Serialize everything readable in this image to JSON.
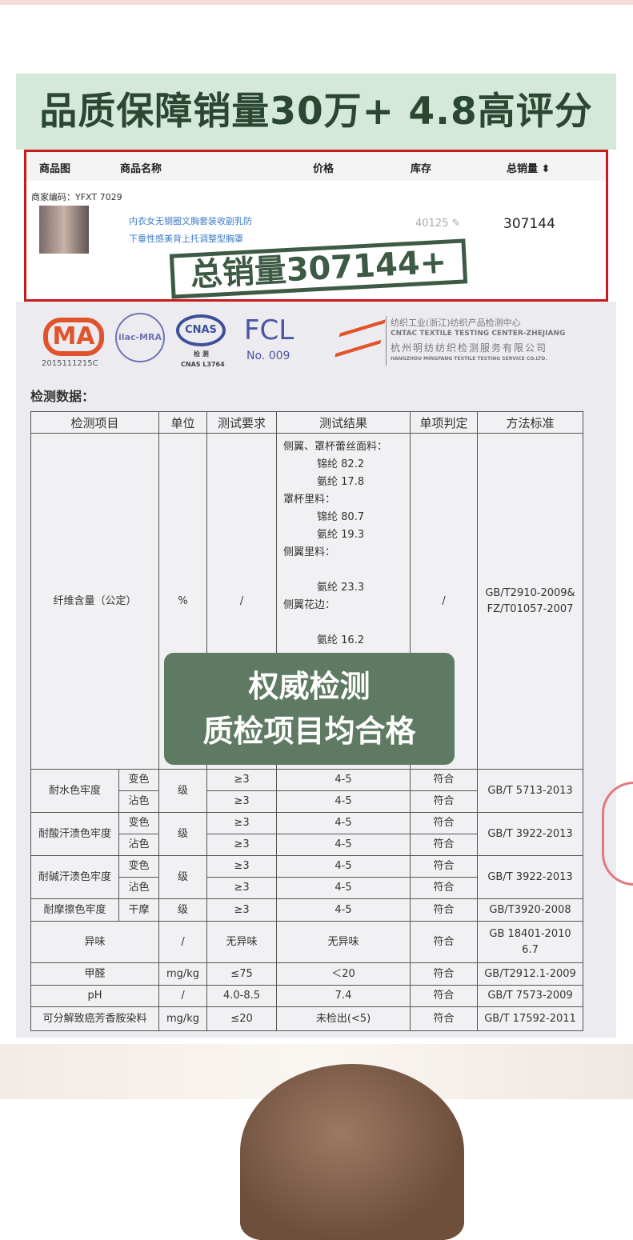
{
  "banner": {
    "title": "品质保障销量30万+ 4.8高评分"
  },
  "listing": {
    "headers": [
      "商品图",
      "商品名称",
      "价格",
      "库存",
      "总销量 ⬍"
    ],
    "merchant_code": "商家编码：YFXT 7029",
    "product_name_1": "内衣女无钢圈文胸套装收副乳防",
    "product_name_2": "下垂性感美背上托调整型胸罩",
    "stock": "40125 ✎",
    "total_sales": "307144",
    "stamp": "总销量307144+",
    "accent": "#c8191c"
  },
  "certs": {
    "cma": "MA",
    "cma_no": "2015111215C",
    "ilac": "ilac-MRA",
    "cnas": "CNAS",
    "cnas_sub": "检 测",
    "cnas_no": "CNAS L3764",
    "fcl": "FCL",
    "fcl_no": "No. 009",
    "center_cn": "纺织工业(浙江)纺织产品检测中心",
    "center_en": "CNTAC TEXTILE TESTING CENTER-ZHEJIANG",
    "company_cn": "杭州明纺纺织检测服务有限公司",
    "company_en": "HANGZHOU MINGFANG TEXTILE TESTING SERVICE CO.LTD."
  },
  "report": {
    "label": "检测数据：",
    "headers": [
      "检测项目",
      "单位",
      "测试要求",
      "测试结果",
      "单项判定",
      "方法标准"
    ],
    "fiber": {
      "item": "纤维含量（公定）",
      "unit": "%",
      "req": "/",
      "judge": "/",
      "std1": "GB/T2910-2009&",
      "std2": "FZ/T01057-2007",
      "results": [
        "侧翼、罩杯蕾丝面料：",
        "锦纶  82.2",
        "氨纶  17.8",
        "罩杯里料：",
        "锦纶   80.7",
        "氨纶   19.3",
        "侧翼里料：",
        "",
        "氨纶   23.3",
        "侧翼花边：",
        "",
        "氨纶  16.2"
      ]
    },
    "rows": [
      {
        "item": "耐水色牢度",
        "sub": [
          "变色",
          "沾色"
        ],
        "unit": "级",
        "req": [
          "≥3",
          "≥3"
        ],
        "res": [
          "4-5",
          "4-5"
        ],
        "judge": [
          "符合",
          "符合"
        ],
        "std": "GB/T 5713-2013"
      },
      {
        "item": "耐酸汗渍色牢度",
        "sub": [
          "变色",
          "沾色"
        ],
        "unit": "级",
        "req": [
          "≥3",
          "≥3"
        ],
        "res": [
          "4-5",
          "4-5"
        ],
        "judge": [
          "符合",
          "符合"
        ],
        "std": "GB/T 3922-2013"
      },
      {
        "item": "耐碱汗渍色牢度",
        "sub": [
          "变色",
          "沾色"
        ],
        "unit": "级",
        "req": [
          "≥3",
          "≥3"
        ],
        "res": [
          "4-5",
          "4-5"
        ],
        "judge": [
          "符合",
          "符合"
        ],
        "std": "GB/T 3922-2013"
      }
    ],
    "rub": {
      "item": "耐摩擦色牢度",
      "sub": "干摩",
      "unit": "级",
      "req": "≥3",
      "res": "4-5",
      "judge": "符合",
      "std": "GB/T3920-2008"
    },
    "simple": [
      {
        "item": "异味",
        "unit": "/",
        "req": "无异味",
        "res": "无异味",
        "judge": "符合",
        "std": "GB 18401-2010 6.7"
      },
      {
        "item": "甲醛",
        "unit": "mg/kg",
        "req": "≤75",
        "res": "＜20",
        "judge": "符合",
        "std": "GB/T2912.1-2009"
      },
      {
        "item": "pH",
        "unit": "/",
        "req": "4.0-8.5",
        "res": "7.4",
        "judge": "符合",
        "std": "GB/T 7573-2009"
      },
      {
        "item": "可分解致癌芳香胺染料",
        "unit": "mg/kg",
        "req": "≤20",
        "res": "未检出(<5)",
        "judge": "符合",
        "std": "GB/T 17592-2011"
      }
    ]
  },
  "overlay": {
    "line1": "权威检测",
    "line2": "质检项目均合格"
  }
}
